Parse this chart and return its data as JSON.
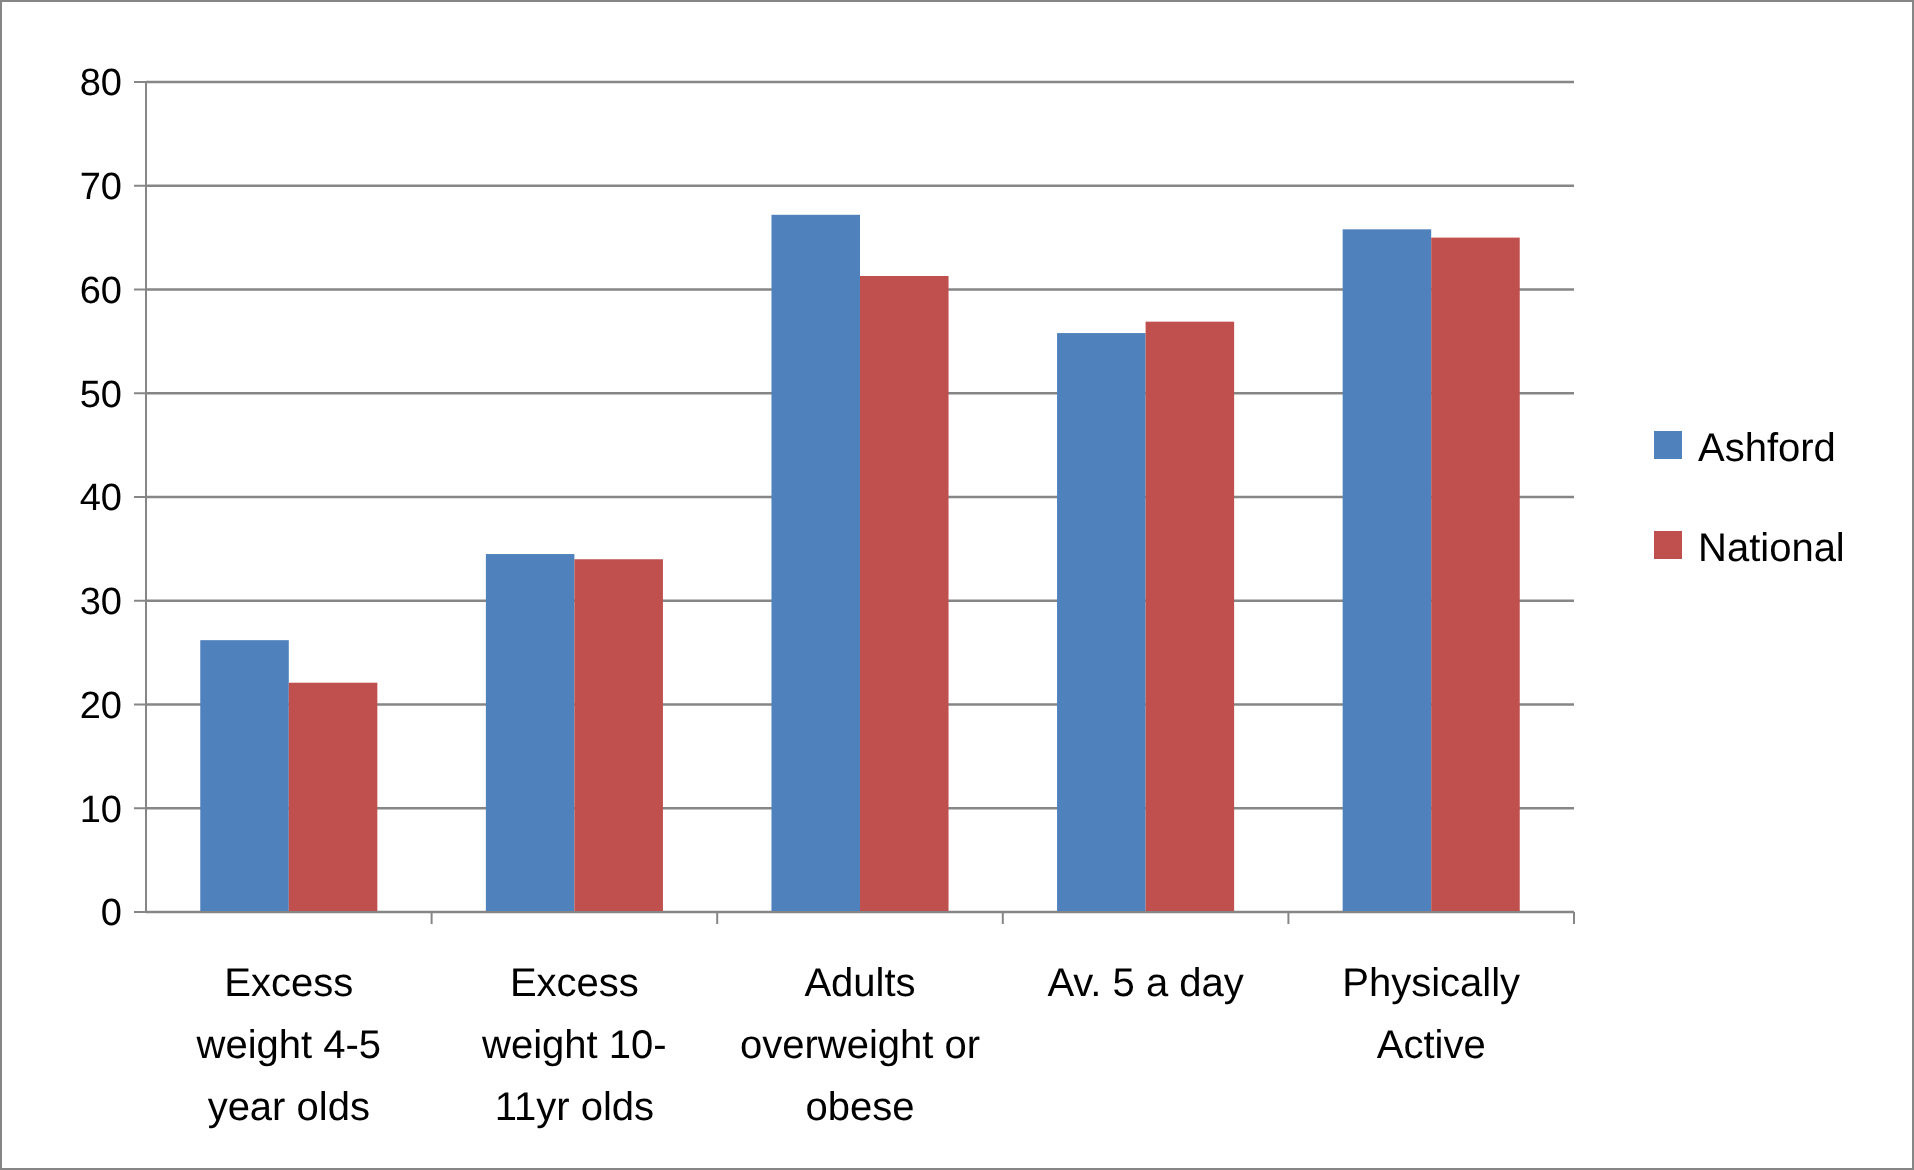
{
  "chart_data": {
    "type": "bar",
    "categories": [
      "Excess weight 4-5 year olds",
      "Excess weight 10-11yr olds",
      "Adults overweight or obese",
      "Av. 5 a day",
      "Physically Active"
    ],
    "series": [
      {
        "name": "Ashford",
        "color": "#4f81bd",
        "values": [
          26.2,
          34.5,
          67.2,
          55.8,
          65.8
        ]
      },
      {
        "name": "National",
        "color": "#c0504d",
        "values": [
          22.1,
          34.0,
          61.3,
          56.9,
          65.0
        ]
      }
    ],
    "ylim": [
      0,
      80
    ],
    "yticks": [
      0,
      10,
      20,
      30,
      40,
      50,
      60,
      70,
      80
    ],
    "grid": "y",
    "legend": "right"
  }
}
